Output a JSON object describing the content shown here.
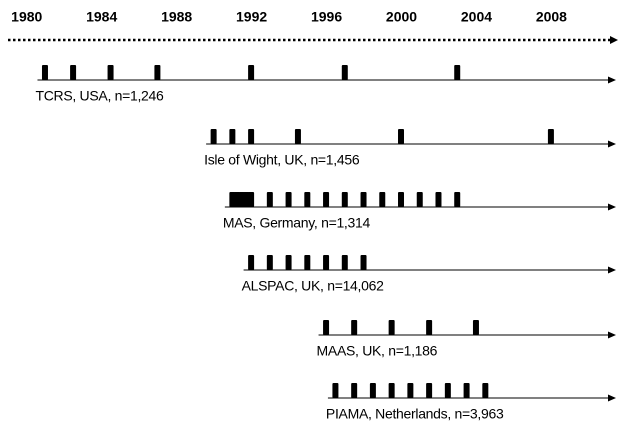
{
  "chart_data": {
    "type": "timeline",
    "xlim": [
      1979,
      2011.5
    ],
    "xticks": [
      1980,
      1984,
      1988,
      1992,
      1996,
      2000,
      2004,
      2008
    ],
    "color": "#000000",
    "series": [
      {
        "name": "TCRS, USA, n=1,246",
        "values": [
          1981,
          1982.5,
          1984.5,
          1987,
          1992,
          1997,
          2003
        ]
      },
      {
        "name": "Isle of Wight, UK, n=1,456",
        "values": [
          1990,
          1991,
          1992,
          1994.5,
          2000,
          2008
        ]
      },
      {
        "name": "MAS, Germany, n=1,314",
        "values": [
          1991,
          1991.25,
          1991.5,
          1991.75,
          1992,
          1993,
          1994,
          1995,
          1996,
          1997,
          1998,
          1999,
          2000,
          2001,
          2002,
          2003
        ]
      },
      {
        "name": "ALSPAC, UK, n=14,062",
        "values": [
          1992,
          1993,
          1994,
          1995,
          1996,
          1997,
          1998
        ]
      },
      {
        "name": "MAAS, UK, n=1,186",
        "values": [
          1996,
          1997.5,
          1999.5,
          2001.5,
          2004
        ]
      },
      {
        "name": "PIAMA, Netherlands, n=3,963",
        "values": [
          1996.5,
          1997.5,
          1998.5,
          1999.5,
          2000.5,
          2001.5,
          2002.5,
          2003.5,
          2004.5
        ]
      }
    ]
  }
}
